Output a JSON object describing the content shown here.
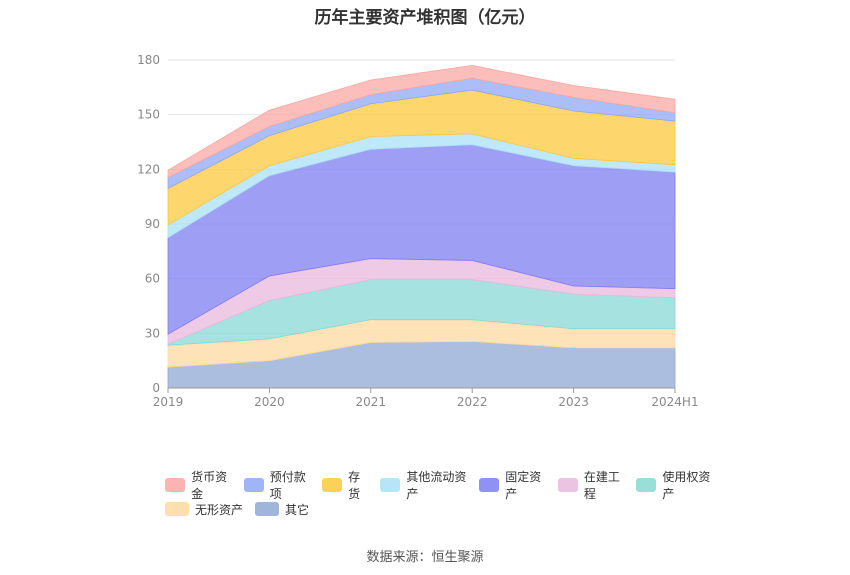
{
  "title": "历年主要资产堆积图（亿元）",
  "source": "数据来源：恒生聚源",
  "chart_data": {
    "type": "area",
    "stacked": true,
    "title": "历年主要资产堆积图（亿元）",
    "categories": [
      "2019",
      "2020",
      "2021",
      "2022",
      "2023",
      "2024H1"
    ],
    "ylim": [
      0,
      180
    ],
    "yticks": [
      0,
      30,
      60,
      90,
      120,
      150,
      180
    ],
    "grid": true,
    "legend_position": "bottom",
    "series": [
      {
        "name": "其它",
        "color": "#8fa8d6",
        "values": [
          11.5,
          15,
          25,
          25.5,
          22,
          22
        ]
      },
      {
        "name": "无形资产",
        "color": "#ffd9a0",
        "values": [
          12,
          12,
          12.5,
          12,
          10.5,
          10.5
        ]
      },
      {
        "name": "使用权资产",
        "color": "#88d8d4",
        "values": [
          0.5,
          21,
          22,
          22,
          19,
          17
        ]
      },
      {
        "name": "在建工程",
        "color": "#e9b8dd",
        "values": [
          5.5,
          13.5,
          11.5,
          10.5,
          4.5,
          5
        ]
      },
      {
        "name": "固定资产",
        "color": "#7d7ef2",
        "values": [
          53,
          55,
          60,
          63.5,
          66,
          64
        ]
      },
      {
        "name": "其他流动资产",
        "color": "#a9e0f7",
        "values": [
          7,
          5.5,
          7,
          6,
          4,
          4
        ]
      },
      {
        "name": "存货",
        "color": "#fcc93d",
        "values": [
          20,
          16.5,
          18,
          24,
          26,
          24
        ]
      },
      {
        "name": "预付款项",
        "color": "#8fa8f7",
        "values": [
          6,
          5,
          5,
          6.5,
          7.5,
          4.5
        ]
      },
      {
        "name": "货币资金",
        "color": "#f9a8a4",
        "values": [
          4,
          9,
          8,
          7,
          6.5,
          7.5
        ]
      }
    ]
  }
}
